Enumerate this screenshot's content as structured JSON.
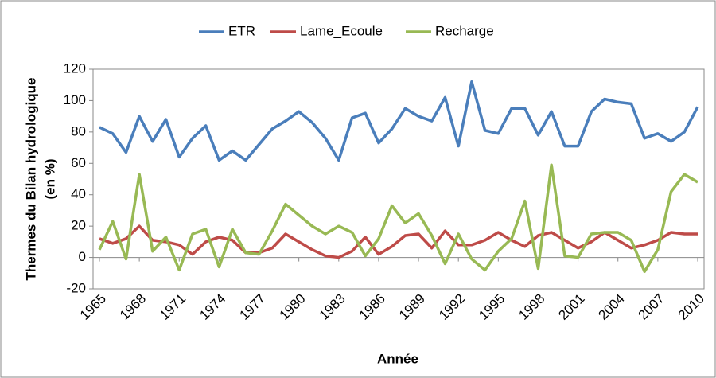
{
  "chart_data": {
    "type": "line",
    "xlabel": "Année",
    "ylabel": [
      "Thermes du Bilan hydrologique",
      "(en %)"
    ],
    "x": [
      1965,
      1966,
      1967,
      1968,
      1969,
      1970,
      1971,
      1972,
      1973,
      1974,
      1975,
      1976,
      1977,
      1978,
      1979,
      1980,
      1981,
      1982,
      1983,
      1984,
      1985,
      1986,
      1987,
      1988,
      1989,
      1990,
      1991,
      1992,
      1993,
      1994,
      1995,
      1996,
      1997,
      1998,
      1999,
      2000,
      2001,
      2002,
      2003,
      2004,
      2005,
      2006,
      2007,
      2008,
      2009,
      2010
    ],
    "series": [
      {
        "name": "ETR",
        "color": "#4a7ebb",
        "values": [
          83,
          79,
          67,
          90,
          74,
          88,
          64,
          76,
          84,
          62,
          68,
          62,
          72,
          82,
          87,
          93,
          86,
          76,
          62,
          89,
          92,
          73,
          82,
          95,
          90,
          87,
          102,
          71,
          112,
          81,
          79,
          95,
          95,
          78,
          93,
          71,
          71,
          93,
          101,
          99,
          98,
          76,
          79,
          74,
          80,
          96
        ]
      },
      {
        "name": "Lame_Ecoule",
        "color": "#be4b48",
        "values": [
          12,
          9,
          12,
          20,
          11,
          10,
          8,
          2,
          10,
          13,
          11,
          3,
          3,
          6,
          15,
          10,
          5,
          1,
          0,
          4,
          13,
          2,
          7,
          14,
          15,
          6,
          17,
          8,
          8,
          11,
          16,
          11,
          7,
          14,
          16,
          11,
          6,
          10,
          16,
          11,
          6,
          8,
          11,
          16,
          15,
          15
        ]
      },
      {
        "name": "Recharge",
        "color": "#98b954",
        "values": [
          5,
          23,
          -1,
          53,
          4,
          13,
          -8,
          15,
          18,
          -6,
          18,
          3,
          2,
          17,
          34,
          27,
          20,
          15,
          20,
          16,
          1,
          12,
          33,
          22,
          28,
          14,
          -4,
          15,
          -1,
          -8,
          4,
          12,
          36,
          -7,
          59,
          1,
          0,
          15,
          16,
          16,
          11,
          -9,
          5,
          42,
          53,
          48
        ]
      }
    ],
    "xlim": [
      1965,
      2010
    ],
    "xticks": [
      1965,
      1968,
      1971,
      1974,
      1977,
      1980,
      1983,
      1986,
      1989,
      1992,
      1995,
      1998,
      2001,
      2004,
      2007,
      2010
    ],
    "ylim": [
      -20,
      120
    ],
    "yticks": [
      -20,
      0,
      20,
      40,
      60,
      80,
      100,
      120
    ],
    "grid": false,
    "legend": "top"
  }
}
